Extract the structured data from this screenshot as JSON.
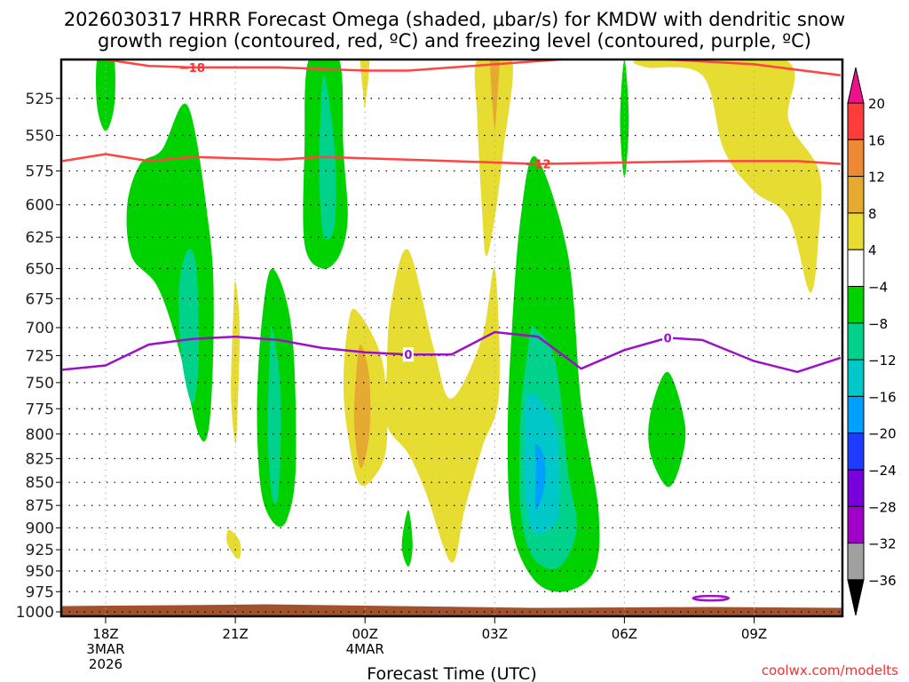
{
  "chart_data": {
    "type": "heatmap",
    "title_lines": [
      "2026030317 HRRR Forecast Omega (shaded, μbar/s) for KMDW with dendritic snow",
      "growth region (contoured, red, ºC) and freezing level (contoured, purple, ºC)"
    ],
    "xlabel": "Forecast Time (UTC)",
    "ylabel": "",
    "credit": "coolwx.com/modelts",
    "x_range_hours": [
      -1,
      17
    ],
    "x_ticks": [
      {
        "hour": 0,
        "lines": [
          "18Z",
          "3MAR",
          "2026"
        ]
      },
      {
        "hour": 3,
        "lines": [
          "21Z"
        ]
      },
      {
        "hour": 6,
        "lines": [
          "00Z",
          "4MAR"
        ]
      },
      {
        "hour": 9,
        "lines": [
          "03Z"
        ]
      },
      {
        "hour": 12,
        "lines": [
          "06Z"
        ]
      },
      {
        "hour": 15,
        "lines": [
          "09Z"
        ]
      }
    ],
    "y_range_hpa": [
      500,
      1010
    ],
    "y_ticks": [
      525,
      550,
      575,
      600,
      625,
      650,
      675,
      700,
      725,
      750,
      775,
      800,
      825,
      850,
      875,
      900,
      925,
      950,
      975,
      1000
    ],
    "grid": true,
    "colorbar": {
      "position": "right",
      "levels": [
        20,
        16,
        12,
        8,
        4,
        -4,
        -8,
        -12,
        -16,
        -20,
        -24,
        -28,
        -32,
        -36
      ],
      "colors": [
        "#ff3c3c",
        "#ee8833",
        "#e6aa30",
        "#e6dc32",
        "#ffffff",
        "#00d200",
        "#00d28c",
        "#00c8c8",
        "#00a0ff",
        "#1e3cff",
        "#7800dc",
        "#a000c8",
        "#a0a0a0"
      ],
      "over_color": "#f0108c",
      "under_color": "#000000"
    },
    "omega_regions": [
      {
        "label": "green 18Z upper",
        "value_class": "-4 to -8",
        "points": [
          [
            0,
            500
          ],
          [
            0.2,
            500
          ],
          [
            0.2,
            530
          ],
          [
            0,
            547
          ],
          [
            -0.2,
            530
          ],
          [
            -0.2,
            500
          ]
        ]
      },
      {
        "label": "green 19-20Z",
        "value_class": "-4 to -8",
        "points": [
          [
            1.9,
            530
          ],
          [
            2.4,
            620
          ],
          [
            2.5,
            690
          ],
          [
            2.4,
            790
          ],
          [
            2.15,
            800
          ],
          [
            1.7,
            720
          ],
          [
            1.2,
            665
          ],
          [
            0.6,
            640
          ],
          [
            0.5,
            600
          ],
          [
            0.8,
            570
          ],
          [
            1.3,
            560
          ]
        ]
      },
      {
        "label": "teal 20Z",
        "value_class": "-8 to -12",
        "points": [
          [
            1.9,
            635
          ],
          [
            2.1,
            650
          ],
          [
            2.15,
            730
          ],
          [
            2.0,
            770
          ],
          [
            1.75,
            725
          ],
          [
            1.7,
            665
          ]
        ]
      },
      {
        "label": "yellow 21Z sliver",
        "value_class": "4 to 8",
        "points": [
          [
            3.0,
            660
          ],
          [
            3.1,
            700
          ],
          [
            3.05,
            780
          ],
          [
            3.0,
            810
          ],
          [
            2.9,
            760
          ],
          [
            2.95,
            690
          ]
        ]
      },
      {
        "label": "yellow 21Z low",
        "value_class": "4 to 8",
        "points": [
          [
            2.85,
            902
          ],
          [
            3.1,
            915
          ],
          [
            3.1,
            935
          ],
          [
            2.95,
            930
          ],
          [
            2.8,
            915
          ]
        ]
      },
      {
        "label": "green 22Z",
        "value_class": "-4 to -8",
        "points": [
          [
            3.85,
            650
          ],
          [
            4.3,
            700
          ],
          [
            4.4,
            830
          ],
          [
            4.2,
            890
          ],
          [
            3.9,
            895
          ],
          [
            3.6,
            860
          ],
          [
            3.5,
            780
          ],
          [
            3.6,
            700
          ]
        ]
      },
      {
        "label": "teal 22Z",
        "value_class": "-8 to -12",
        "points": [
          [
            3.85,
            700
          ],
          [
            4.05,
            760
          ],
          [
            4.0,
            860
          ],
          [
            3.85,
            865
          ],
          [
            3.75,
            800
          ],
          [
            3.8,
            720
          ]
        ]
      },
      {
        "label": "green 23Z upper",
        "value_class": "-4 to -8",
        "points": [
          [
            4.7,
            500
          ],
          [
            5.4,
            500
          ],
          [
            5.5,
            560
          ],
          [
            5.6,
            610
          ],
          [
            5.4,
            640
          ],
          [
            5.0,
            650
          ],
          [
            4.6,
            630
          ],
          [
            4.6,
            560
          ]
        ]
      },
      {
        "label": "teal 23Z upper",
        "value_class": "-8 to -12",
        "points": [
          [
            5.05,
            510
          ],
          [
            5.3,
            560
          ],
          [
            5.3,
            615
          ],
          [
            5.05,
            625
          ],
          [
            4.95,
            590
          ],
          [
            4.95,
            550
          ]
        ]
      },
      {
        "label": "yellow 00Z upper",
        "value_class": "4 to 8",
        "points": [
          [
            5.9,
            500
          ],
          [
            6.1,
            500
          ],
          [
            6.0,
            530
          ],
          [
            5.95,
            520
          ]
        ]
      },
      {
        "label": "yellow 23Z mid",
        "value_class": "4 to 8",
        "points": [
          [
            5.8,
            685
          ],
          [
            6.4,
            730
          ],
          [
            6.5,
            810
          ],
          [
            6.2,
            845
          ],
          [
            5.85,
            850
          ],
          [
            5.6,
            800
          ],
          [
            5.5,
            750
          ],
          [
            5.6,
            700
          ]
        ]
      },
      {
        "label": "orange 23Z",
        "value_class": "8 to 12",
        "points": [
          [
            5.9,
            715
          ],
          [
            6.1,
            745
          ],
          [
            6.1,
            800
          ],
          [
            5.9,
            835
          ],
          [
            5.75,
            790
          ],
          [
            5.8,
            740
          ]
        ]
      },
      {
        "label": "yellow 01-03Z",
        "value_class": "4 to 8",
        "points": [
          [
            7.0,
            635
          ],
          [
            7.6,
            720
          ],
          [
            8.0,
            765
          ],
          [
            8.7,
            710
          ],
          [
            9.0,
            650
          ],
          [
            9.1,
            760
          ],
          [
            8.7,
            815
          ],
          [
            8.3,
            880
          ],
          [
            8.0,
            940
          ],
          [
            7.4,
            860
          ],
          [
            7.0,
            820
          ],
          [
            6.5,
            790
          ],
          [
            6.5,
            740
          ],
          [
            6.6,
            680
          ]
        ]
      },
      {
        "label": "green 01Z low",
        "value_class": "-4 to -8",
        "points": [
          [
            0.0,
            0
          ]
        ]
      },
      {
        "label": "yellow 03Z upper",
        "value_class": "4 to 8",
        "points": [
          [
            8.6,
            500
          ],
          [
            9.4,
            500
          ],
          [
            9.2,
            560
          ],
          [
            9.0,
            610
          ],
          [
            8.8,
            640
          ],
          [
            8.7,
            600
          ],
          [
            8.6,
            540
          ]
        ]
      },
      {
        "label": "orange 03Z upper",
        "value_class": "8 to 12",
        "points": [
          [
            8.9,
            500
          ],
          [
            9.1,
            500
          ],
          [
            9.05,
            530
          ],
          [
            9.0,
            545
          ],
          [
            8.95,
            530
          ]
        ]
      },
      {
        "label": "green 03-05Z",
        "value_class": "-4 to -8",
        "points": [
          [
            9.95,
            565
          ],
          [
            10.7,
            640
          ],
          [
            11.0,
            770
          ],
          [
            11.4,
            880
          ],
          [
            11.3,
            950
          ],
          [
            10.6,
            975
          ],
          [
            9.9,
            960
          ],
          [
            9.4,
            900
          ],
          [
            9.3,
            800
          ],
          [
            9.4,
            700
          ],
          [
            9.6,
            610
          ]
        ]
      },
      {
        "label": "teal-green 04Z",
        "value_class": "-8 to -12",
        "points": [
          [
            9.9,
            700
          ],
          [
            10.4,
            730
          ],
          [
            10.7,
            840
          ],
          [
            10.9,
            900
          ],
          [
            10.5,
            945
          ],
          [
            9.9,
            935
          ],
          [
            9.6,
            880
          ],
          [
            9.6,
            780
          ],
          [
            9.8,
            710
          ]
        ]
      },
      {
        "label": "cyan 04Z",
        "value_class": "-12 to -16",
        "points": [
          [
            9.8,
            760
          ],
          [
            10.4,
            790
          ],
          [
            10.5,
            860
          ],
          [
            10.4,
            895
          ],
          [
            9.9,
            905
          ],
          [
            9.7,
            860
          ],
          [
            9.7,
            800
          ]
        ]
      },
      {
        "label": "blue 04Z",
        "value_class": "-16 to -20",
        "points": [
          [
            9.95,
            810
          ],
          [
            10.15,
            825
          ],
          [
            10.15,
            855
          ],
          [
            9.95,
            880
          ],
          [
            9.95,
            840
          ]
        ]
      },
      {
        "label": "green 06Z upper",
        "value_class": "-4 to -8",
        "points": [
          [
            12.0,
            500
          ],
          [
            12.1,
            540
          ],
          [
            12.0,
            580
          ],
          [
            11.9,
            540
          ]
        ]
      },
      {
        "label": "green 07Z low",
        "value_class": "-4 to -8",
        "points": [
          [
            13.0,
            740
          ],
          [
            13.4,
            790
          ],
          [
            13.3,
            830
          ],
          [
            13.0,
            855
          ],
          [
            12.6,
            820
          ],
          [
            12.6,
            780
          ]
        ]
      },
      {
        "label": "yellow 08-10Z",
        "value_class": "4 to 8",
        "points": [
          [
            12.5,
            500
          ],
          [
            15.7,
            500
          ],
          [
            15.8,
            540
          ],
          [
            16.5,
            575
          ],
          [
            16.5,
            620
          ],
          [
            16.3,
            670
          ],
          [
            15.8,
            610
          ],
          [
            15.0,
            590
          ],
          [
            14.3,
            560
          ],
          [
            13.8,
            510
          ],
          [
            12.5,
            505
          ]
        ]
      },
      {
        "label": "green 01Z low",
        "value_class": "-4 to -8",
        "points": [
          [
            7.0,
            880
          ],
          [
            7.1,
            920
          ],
          [
            7.0,
            945
          ],
          [
            6.85,
            920
          ]
        ]
      }
    ],
    "dgz_contours": [
      {
        "label": "-18",
        "label_hour": 2.0,
        "points": [
          [
            -1,
            500
          ],
          [
            0,
            500
          ],
          [
            1,
            504
          ],
          [
            2,
            505
          ],
          [
            4,
            505
          ],
          [
            6,
            507
          ],
          [
            7,
            507
          ],
          [
            9,
            503
          ],
          [
            11,
            499
          ],
          [
            13,
            500
          ],
          [
            15,
            503
          ],
          [
            17,
            510
          ]
        ]
      },
      {
        "label": "-12",
        "label_hour": 10.0,
        "points": [
          [
            -1,
            568
          ],
          [
            0,
            563
          ],
          [
            1,
            568
          ],
          [
            2,
            565
          ],
          [
            4,
            567
          ],
          [
            5,
            565
          ],
          [
            6,
            566
          ],
          [
            8,
            568
          ],
          [
            10,
            570
          ],
          [
            12,
            569
          ],
          [
            14,
            568
          ],
          [
            16,
            568
          ],
          [
            17,
            570
          ]
        ]
      }
    ],
    "freezing_contour": {
      "label": "0",
      "label_hours": [
        7.0,
        13.0
      ],
      "points": [
        [
          -1,
          738
        ],
        [
          0,
          734
        ],
        [
          1,
          715
        ],
        [
          2,
          710
        ],
        [
          3,
          708
        ],
        [
          4,
          711
        ],
        [
          5,
          718
        ],
        [
          6,
          722
        ],
        [
          7,
          724
        ],
        [
          8,
          724
        ],
        [
          9,
          704
        ],
        [
          10,
          708
        ],
        [
          11,
          737
        ],
        [
          12,
          720
        ],
        [
          13,
          709
        ],
        [
          13.8,
          711
        ],
        [
          15,
          730
        ],
        [
          16,
          740
        ],
        [
          17,
          727
        ]
      ]
    },
    "freezing_blob": {
      "hour": 14.0,
      "hpa": 983
    },
    "surface_terrain_hpa": 995
  }
}
